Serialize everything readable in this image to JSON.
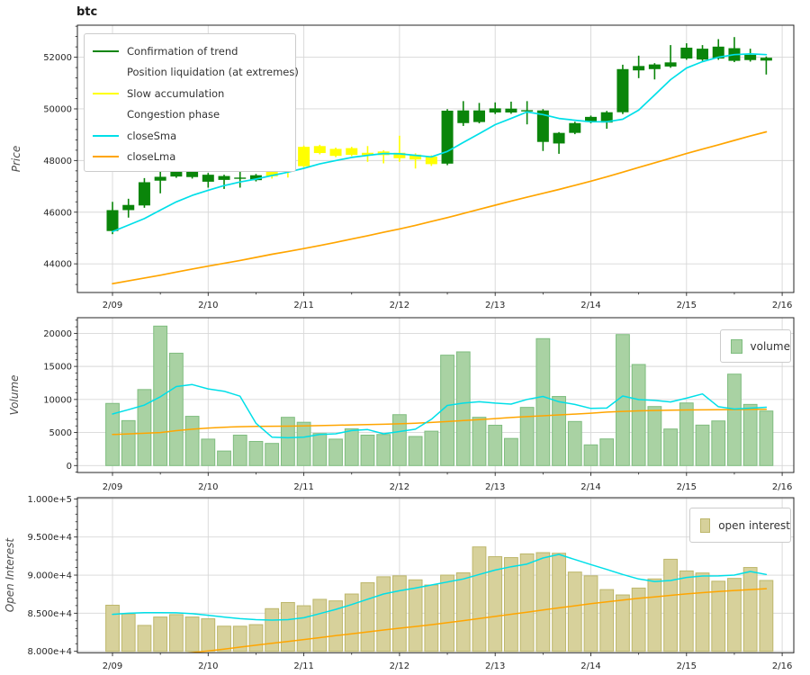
{
  "title": "btc",
  "colors": {
    "confirmation": "#0a850a",
    "liquidation": "#ffffff",
    "accumulation": "#ffff00",
    "congestion": "#ffffff",
    "sma": "#00dfe8",
    "lma": "#ffa500",
    "volume_fill": "#a9d2a3",
    "volume_edge": "#7fbd7f",
    "oi_fill": "#d7d19b",
    "oi_edge": "#bdb76b",
    "grid": "#d7d7d7",
    "spine": "#262626",
    "text": "#262626"
  },
  "legend_price": {
    "items": [
      {
        "label": "Confirmation of trend",
        "color": "#0a850a"
      },
      {
        "label": "Position liquidation (at extremes)",
        "color": "#ffffff"
      },
      {
        "label": "Slow accumulation",
        "color": "#ffff00"
      },
      {
        "label": "Congestion phase",
        "color": "#ffffff"
      },
      {
        "label": "closeSma",
        "color": "#00dfe8"
      },
      {
        "label": "closeLma",
        "color": "#ffa500"
      }
    ]
  },
  "chart_data": [
    {
      "type": "candlestick",
      "title": "btc",
      "ylabel": "Price",
      "ylim": [
        42890,
        53240
      ],
      "yticks": [
        44000,
        46000,
        48000,
        50000,
        52000
      ],
      "ytick_labels": [
        "44000",
        "46000",
        "48000",
        "50000",
        "52000"
      ],
      "x_tick_labels": [
        "2/09",
        "2/10",
        "2/11",
        "2/12",
        "2/13",
        "2/14",
        "2/15",
        "2/16"
      ],
      "candles_per_day": 6,
      "grid": true,
      "legend_position": "upper left",
      "candles": [
        {
          "phase": "confirmation",
          "ohlc": [
            45270,
            46400,
            45150,
            46080
          ]
        },
        {
          "phase": "confirmation",
          "ohlc": [
            46080,
            46520,
            45790,
            46280
          ]
        },
        {
          "phase": "confirmation",
          "ohlc": [
            46260,
            47320,
            46170,
            47160
          ]
        },
        {
          "phase": "confirmation",
          "ohlc": [
            47220,
            47680,
            46730,
            47370
          ]
        },
        {
          "phase": "confirmation",
          "ohlc": [
            47380,
            47700,
            47330,
            47650
          ]
        },
        {
          "phase": "confirmation",
          "ohlc": [
            47360,
            47660,
            47300,
            47620
          ]
        },
        {
          "phase": "confirmation",
          "ohlc": [
            47180,
            47520,
            46950,
            47450
          ]
        },
        {
          "phase": "confirmation",
          "ohlc": [
            47250,
            47450,
            46900,
            47400
          ]
        },
        {
          "phase": "confirmation",
          "ohlc": [
            47310,
            47600,
            46950,
            47340
          ]
        },
        {
          "phase": "confirmation",
          "ohlc": [
            47240,
            47480,
            47190,
            47430
          ]
        },
        {
          "phase": "accumulation",
          "ohlc": [
            47390,
            47620,
            47300,
            47560
          ]
        },
        {
          "phase": "accumulation",
          "ohlc": [
            47590,
            47760,
            47340,
            47630
          ]
        },
        {
          "phase": "accumulation",
          "ohlc": [
            47780,
            48580,
            47740,
            48530
          ]
        },
        {
          "phase": "accumulation",
          "ohlc": [
            48290,
            48610,
            48240,
            48560
          ]
        },
        {
          "phase": "accumulation",
          "ohlc": [
            48180,
            48500,
            48130,
            48450
          ]
        },
        {
          "phase": "accumulation",
          "ohlc": [
            48220,
            48530,
            48170,
            48480
          ]
        },
        {
          "phase": "accumulation",
          "ohlc": [
            48210,
            48560,
            47950,
            48300
          ]
        },
        {
          "phase": "accumulation",
          "ohlc": [
            48210,
            48400,
            47890,
            48350
          ]
        },
        {
          "phase": "accumulation",
          "ohlc": [
            48090,
            48960,
            47950,
            48300
          ]
        },
        {
          "phase": "accumulation",
          "ohlc": [
            48230,
            48280,
            47690,
            48040
          ]
        },
        {
          "phase": "accumulation",
          "ohlc": [
            48150,
            48200,
            47790,
            47860
          ]
        },
        {
          "phase": "confirmation",
          "ohlc": [
            47880,
            49990,
            47820,
            49930
          ]
        },
        {
          "phase": "confirmation",
          "ohlc": [
            49940,
            50300,
            49340,
            49450
          ]
        },
        {
          "phase": "confirmation",
          "ohlc": [
            49490,
            50230,
            49440,
            49940
          ]
        },
        {
          "phase": "confirmation",
          "ohlc": [
            49860,
            50250,
            49800,
            50020
          ]
        },
        {
          "phase": "confirmation",
          "ohlc": [
            49860,
            50280,
            49810,
            50010
          ]
        },
        {
          "phase": "confirmation",
          "ohlc": [
            49920,
            50300,
            49400,
            49950
          ]
        },
        {
          "phase": "confirmation",
          "ohlc": [
            49940,
            49990,
            48370,
            48720
          ]
        },
        {
          "phase": "confirmation",
          "ohlc": [
            48660,
            49100,
            48260,
            49070
          ]
        },
        {
          "phase": "confirmation",
          "ohlc": [
            49070,
            49500,
            49020,
            49450
          ]
        },
        {
          "phase": "confirmation",
          "ohlc": [
            49490,
            49740,
            49440,
            49690
          ]
        },
        {
          "phase": "confirmation",
          "ohlc": [
            49470,
            49920,
            49230,
            49870
          ]
        },
        {
          "phase": "confirmation",
          "ohlc": [
            49870,
            51710,
            49800,
            51540
          ]
        },
        {
          "phase": "confirmation",
          "ohlc": [
            51490,
            52060,
            51190,
            51660
          ]
        },
        {
          "phase": "confirmation",
          "ohlc": [
            51540,
            51770,
            51140,
            51720
          ]
        },
        {
          "phase": "confirmation",
          "ohlc": [
            51640,
            52470,
            51590,
            51800
          ]
        },
        {
          "phase": "confirmation",
          "ohlc": [
            51950,
            52540,
            51900,
            52370
          ]
        },
        {
          "phase": "confirmation",
          "ohlc": [
            51910,
            52470,
            51860,
            52330
          ]
        },
        {
          "phase": "confirmation",
          "ohlc": [
            51950,
            52700,
            51900,
            52410
          ]
        },
        {
          "phase": "confirmation",
          "ohlc": [
            51860,
            52780,
            51810,
            52350
          ]
        },
        {
          "phase": "confirmation",
          "ohlc": [
            51890,
            52330,
            51830,
            52090
          ]
        },
        {
          "phase": "confirmation",
          "ohlc": [
            51980,
            52030,
            51330,
            51870
          ]
        }
      ],
      "series": [
        {
          "name": "closeSma",
          "color_key": "sma",
          "values": [
            45250,
            45500,
            45750,
            46080,
            46400,
            46650,
            46850,
            47030,
            47170,
            47280,
            47420,
            47550,
            47700,
            47870,
            48000,
            48120,
            48200,
            48270,
            48260,
            48200,
            48140,
            48350,
            48700,
            49040,
            49390,
            49630,
            49880,
            49780,
            49630,
            49560,
            49500,
            49500,
            49600,
            49950,
            50540,
            51130,
            51580,
            51830,
            52000,
            52100,
            52130,
            52100
          ]
        },
        {
          "name": "closeLma",
          "color_key": "lma",
          "values": [
            43230,
            43340,
            43450,
            43560,
            43680,
            43800,
            43910,
            44020,
            44130,
            44250,
            44370,
            44480,
            44590,
            44710,
            44830,
            44960,
            45090,
            45220,
            45350,
            45490,
            45640,
            45790,
            45950,
            46110,
            46270,
            46430,
            46580,
            46730,
            46880,
            47040,
            47200,
            47370,
            47550,
            47730,
            47910,
            48090,
            48270,
            48440,
            48610,
            48780,
            48950,
            49110
          ]
        }
      ]
    },
    {
      "type": "bar",
      "ylabel": "Volume",
      "legend_label": "volume",
      "ylim": [
        -1050,
        22370
      ],
      "yticks": [
        0,
        5000,
        10000,
        15000,
        20000
      ],
      "ytick_labels": [
        "0",
        "5000",
        "10000",
        "15000",
        "20000"
      ],
      "grid": true,
      "legend_position": "upper right",
      "values": [
        9400,
        6800,
        11500,
        21100,
        17000,
        7450,
        4000,
        2200,
        4600,
        3650,
        3350,
        7300,
        6550,
        4850,
        4000,
        5550,
        4600,
        4700,
        7700,
        4400,
        5200,
        16700,
        17200,
        7300,
        6100,
        4100,
        8800,
        19200,
        10450,
        6670,
        3130,
        4030,
        19820,
        15290,
        8930,
        5530,
        9470,
        6120,
        6750,
        13830,
        9250,
        8250
      ],
      "series": [
        {
          "name": "volumeSma",
          "color_key": "sma",
          "values": [
            7800,
            8450,
            9150,
            10400,
            11950,
            12250,
            11600,
            11250,
            10500,
            6400,
            4300,
            4200,
            4300,
            4700,
            4800,
            5300,
            5450,
            4800,
            5150,
            5500,
            7000,
            9100,
            9450,
            9650,
            9450,
            9300,
            10000,
            10450,
            9650,
            9250,
            8640,
            8700,
            10520,
            9980,
            9850,
            9620,
            10200,
            10840,
            8900,
            8550,
            8680,
            8820
          ]
        },
        {
          "name": "volumeLma",
          "color_key": "lma",
          "values": [
            4700,
            4790,
            4890,
            5000,
            5280,
            5500,
            5680,
            5800,
            5880,
            5930,
            5950,
            5960,
            6000,
            6050,
            6100,
            6150,
            6200,
            6250,
            6310,
            6400,
            6520,
            6660,
            6800,
            6950,
            7100,
            7270,
            7400,
            7530,
            7660,
            7790,
            7920,
            8090,
            8200,
            8280,
            8330,
            8390,
            8410,
            8430,
            8450,
            8470,
            8490,
            8520
          ]
        }
      ]
    },
    {
      "type": "bar",
      "ylabel": "Open Interest",
      "legend_label": "open interest",
      "ylim": [
        79810,
        100160
      ],
      "bar_base": 80000,
      "yticks": [
        80000,
        85000,
        90000,
        95000,
        100000
      ],
      "ytick_labels": [
        "8.000e+4",
        "8.500e+4",
        "9.000e+4",
        "9.500e+4",
        "1.000e+5"
      ],
      "grid": true,
      "legend_position": "upper right",
      "values": [
        86050,
        84900,
        83400,
        84500,
        84820,
        84500,
        84270,
        83300,
        83290,
        83500,
        85600,
        86400,
        85980,
        86820,
        86620,
        87520,
        89000,
        89780,
        89900,
        89380,
        88700,
        90000,
        90300,
        93700,
        92420,
        92300,
        92780,
        92950,
        92870,
        90400,
        89900,
        88100,
        87400,
        88300,
        89500,
        92080,
        90550,
        90280,
        89200,
        89570,
        91000,
        89300
      ],
      "series": [
        {
          "name": "oiSma",
          "color_key": "sma",
          "values": [
            84850,
            84990,
            85060,
            85080,
            85050,
            84940,
            84740,
            84500,
            84290,
            84160,
            84100,
            84160,
            84400,
            84950,
            85500,
            86140,
            86840,
            87520,
            87950,
            88300,
            88700,
            89090,
            89490,
            90080,
            90670,
            91100,
            91460,
            92250,
            92720,
            92050,
            91380,
            90750,
            90080,
            89490,
            89170,
            89290,
            89690,
            89880,
            89900,
            90000,
            90470,
            90080
          ]
        },
        {
          "name": "oiLma",
          "color_key": "lma",
          "values": [
            78600,
            78850,
            79100,
            79350,
            79600,
            79830,
            80050,
            80300,
            80550,
            80800,
            81050,
            81300,
            81550,
            81800,
            82050,
            82300,
            82550,
            82800,
            83030,
            83260,
            83500,
            83760,
            84030,
            84300,
            84580,
            84860,
            85140,
            85420,
            85700,
            85980,
            86250,
            86500,
            86730,
            86950,
            87150,
            87350,
            87540,
            87700,
            87850,
            87980,
            88100,
            88220
          ]
        }
      ]
    }
  ]
}
